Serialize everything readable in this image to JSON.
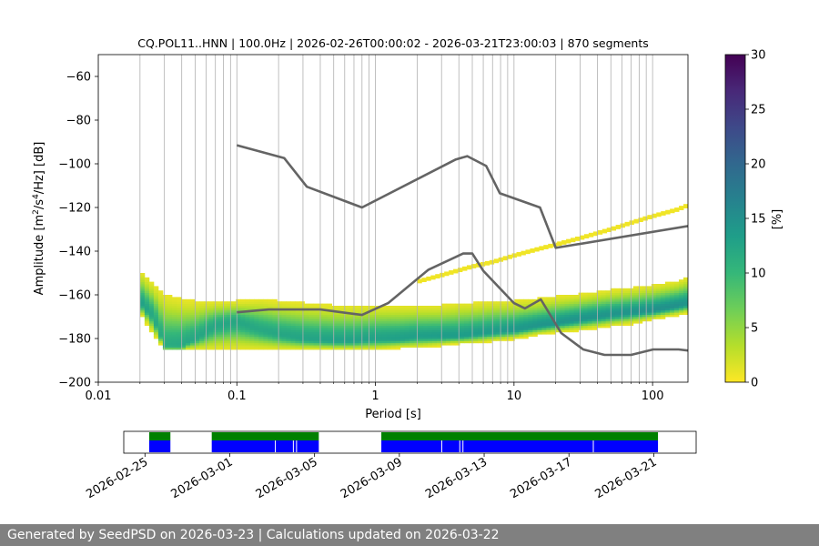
{
  "chart_data": {
    "type": "heatmap",
    "title": "CQ.POL11..HNN | 100.0Hz | 2026-02-26T00:00:02 - 2026-03-21T23:00:03 | 870 segments",
    "xlabel": "Period [s]",
    "ylabel_parts": [
      "Amplitude [m",
      "2",
      "/s",
      "4",
      "/Hz] [dB]"
    ],
    "xscale": "log",
    "xlim": [
      0.01,
      180
    ],
    "ylim": [
      -200,
      -50
    ],
    "x_ticks": [
      {
        "value": 0.01,
        "label": "0.01"
      },
      {
        "value": 0.1,
        "label": "0.1"
      },
      {
        "value": 1,
        "label": "1"
      },
      {
        "value": 10,
        "label": "10"
      },
      {
        "value": 100,
        "label": "100"
      }
    ],
    "y_ticks": [
      {
        "value": -60,
        "label": "−60"
      },
      {
        "value": -80,
        "label": "−80"
      },
      {
        "value": -100,
        "label": "−100"
      },
      {
        "value": -120,
        "label": "−120"
      },
      {
        "value": -140,
        "label": "−140"
      },
      {
        "value": -160,
        "label": "−160"
      },
      {
        "value": -180,
        "label": "−180"
      },
      {
        "value": -200,
        "label": "−200"
      }
    ],
    "colorbar": {
      "label": "[%]",
      "range": [
        0,
        30
      ],
      "ticks": [
        {
          "value": 0,
          "label": "0"
        },
        {
          "value": 5,
          "label": "5"
        },
        {
          "value": 10,
          "label": "10"
        },
        {
          "value": 15,
          "label": "15"
        },
        {
          "value": 20,
          "label": "20"
        },
        {
          "value": 25,
          "label": "25"
        },
        {
          "value": 30,
          "label": "30"
        }
      ],
      "colormap": [
        "#fde725",
        "#b5de2b",
        "#6ece58",
        "#35b779",
        "#1f9e89",
        "#26828e",
        "#31688e",
        "#3e4989",
        "#482878",
        "#440154"
      ]
    },
    "psd_band": {
      "periods": [
        0.02,
        0.025,
        0.03,
        0.04,
        0.05,
        0.07,
        0.1,
        0.15,
        0.2,
        0.3,
        0.5,
        0.7,
        1,
        1.5,
        2,
        3,
        4,
        5,
        7,
        10,
        15,
        20,
        30,
        50,
        70,
        100,
        150,
        180
      ],
      "mode_db": [
        -163,
        -170,
        -183,
        -183,
        -180,
        -174,
        -172,
        -176,
        -178,
        -180,
        -181,
        -181,
        -180,
        -180,
        -179,
        -179,
        -179,
        -178,
        -177,
        -176,
        -174,
        -173,
        -171,
        -169,
        -168,
        -167,
        -165,
        -164
      ],
      "upper_db": [
        -149,
        -155,
        -160,
        -162,
        -163,
        -163,
        -163,
        -162,
        -163,
        -164,
        -165,
        -165,
        -165,
        -165,
        -165,
        -165,
        -164,
        -164,
        -163,
        -163,
        -162,
        -161,
        -160,
        -158,
        -157,
        -156,
        -154,
        -152
      ],
      "lower_db": [
        -168,
        -178,
        -185,
        -185,
        -185,
        -185,
        -185,
        -185,
        -185,
        -185,
        -185,
        -185,
        -185,
        -184,
        -184,
        -183,
        -182,
        -182,
        -181,
        -180,
        -178,
        -177,
        -176,
        -174,
        -173,
        -171,
        -169,
        -168
      ]
    },
    "secondary_band": {
      "periods": [
        2,
        3,
        5,
        7,
        10,
        15,
        20,
        30,
        50,
        70,
        100,
        150,
        180
      ],
      "center_db": [
        -154,
        -151,
        -147,
        -145,
        -142,
        -139,
        -137,
        -134,
        -130,
        -127,
        -124,
        -121,
        -119
      ]
    },
    "nhnm": {
      "periods": [
        0.1,
        0.22,
        0.32,
        0.8,
        3.8,
        4.6,
        6.3,
        7.9,
        15.4,
        20,
        180
      ],
      "db": [
        -91.5,
        -97.4,
        -110.5,
        -120,
        -98,
        -96.5,
        -101,
        -113.5,
        -120,
        -138.5,
        -128.5
      ]
    },
    "nlnm": {
      "periods": [
        0.1,
        0.17,
        0.4,
        0.8,
        1.24,
        2.4,
        4.3,
        5,
        6,
        10,
        12,
        15.6,
        21.9,
        31.6,
        45,
        70,
        101,
        154,
        180
      ],
      "db": [
        -168,
        -166.7,
        -166.7,
        -169.2,
        -163.7,
        -148.6,
        -141.1,
        -141.1,
        -149,
        -163.8,
        -166.2,
        -162.1,
        -177.5,
        -185,
        -187.5,
        -187.5,
        -185,
        -185,
        -185.5
      ]
    },
    "timeline": {
      "date_ticks": [
        "2026-02-25",
        "2026-03-01",
        "2026-03-05",
        "2026-03-09",
        "2026-03-13",
        "2026-03-17",
        "2026-03-21"
      ],
      "start_date": "2026-02-24",
      "end_date": "2026-03-23",
      "green_color": "#008000",
      "blue_color": "#0000ff",
      "coverage_segments": [
        {
          "start": 1.2,
          "end": 2.2
        },
        {
          "start": 4.15,
          "end": 9.2
        },
        {
          "start": 12.15,
          "end": 25.2
        }
      ],
      "gaps": [
        7.15,
        8.0,
        8.15,
        15.0,
        15.85,
        16.0,
        22.15
      ]
    }
  },
  "footer_text": "Generated by SeedPSD on 2026-03-23 | Calculations updated on 2026-03-22"
}
